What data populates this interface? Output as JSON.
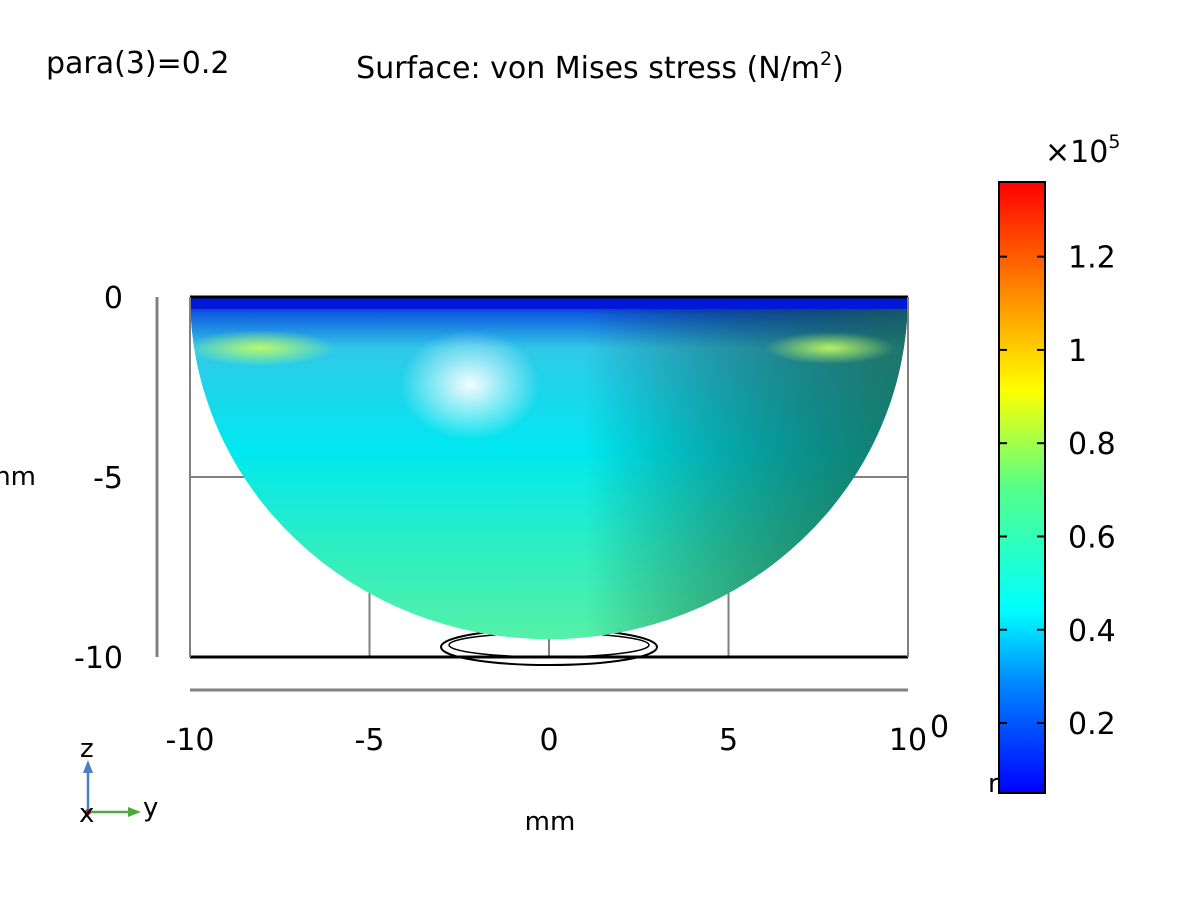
{
  "parameter_label": "para(3)=0.2",
  "title": {
    "main": "Surface: von Mises stress (N/m",
    "superscript": "2",
    "close": ")"
  },
  "colorbar": {
    "multiplier_prefix": "×10",
    "multiplier_exponent": "5",
    "ticks": [
      {
        "value": 0.2,
        "label": "0.2"
      },
      {
        "value": 0.4,
        "label": "0.4"
      },
      {
        "value": 0.6,
        "label": "0.6"
      },
      {
        "value": 0.8,
        "label": "0.8"
      },
      {
        "value": 1.0,
        "label": "1"
      },
      {
        "value": 1.2,
        "label": "1.2"
      }
    ],
    "range": [
      0.05,
      1.36
    ],
    "colormap": "rainbow",
    "unit_fragment": "r"
  },
  "axes_triad": {
    "z": "z",
    "x": "x",
    "y": "y"
  },
  "chart_data": {
    "type": "heatmap",
    "title": "Surface: von Mises stress (N/m²)",
    "xlabel": "mm",
    "ylabel": "mm",
    "ylabel_visible_fragment": "nm",
    "x_ticks": [
      {
        "value": -10,
        "label": "-10"
      },
      {
        "value": -5,
        "label": "-5"
      },
      {
        "value": 0,
        "label": "0"
      },
      {
        "value": 5,
        "label": "5"
      },
      {
        "value": 10,
        "label": "10"
      }
    ],
    "z_ticks": [
      {
        "value": 0,
        "label": "0"
      },
      {
        "value": -5,
        "label": "-5"
      },
      {
        "value": -10,
        "label": "-10"
      }
    ],
    "depth_axis_fragment": "0",
    "xlim": [
      -10,
      10
    ],
    "zlim": [
      -10,
      0
    ],
    "geometry": "hemisphere, radius 10 mm, viewed along x",
    "grid": true
  }
}
